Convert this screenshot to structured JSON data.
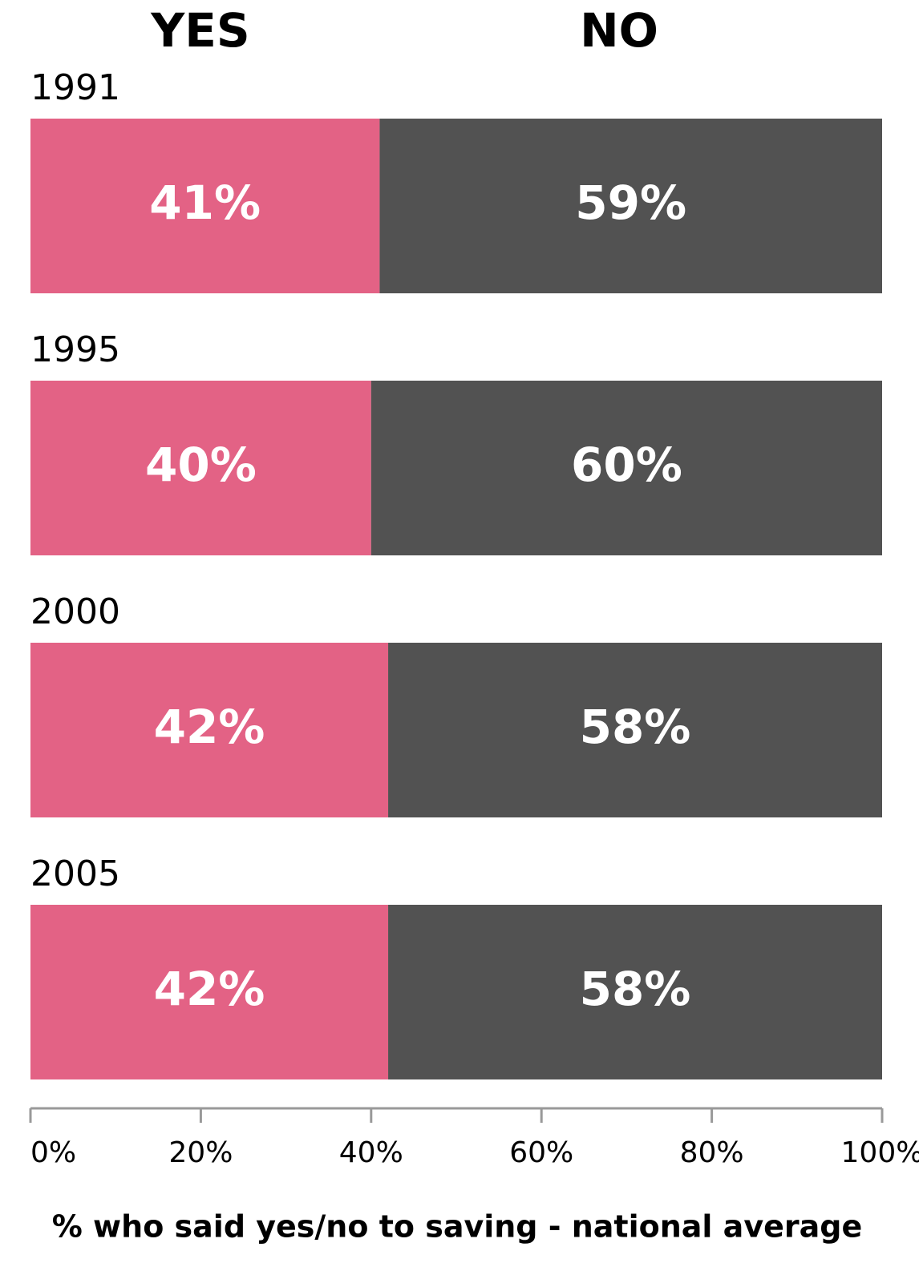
{
  "chart_data": {
    "type": "stacked-bar-horizontal",
    "categories": [
      "1991",
      "1995",
      "2000",
      "2005"
    ],
    "series": [
      {
        "name": "YES",
        "color": "#e36285",
        "values": [
          41,
          40,
          42,
          42
        ],
        "value_labels": [
          "41%",
          "40%",
          "42%",
          "42%"
        ]
      },
      {
        "name": "NO",
        "color": "#525252",
        "values": [
          59,
          60,
          58,
          58
        ],
        "value_labels": [
          "59%",
          "60%",
          "58%",
          "58%"
        ]
      }
    ],
    "xlim": [
      0,
      100
    ],
    "xticks": [
      {
        "value": 0,
        "label": "0%"
      },
      {
        "value": 20,
        "label": "20%"
      },
      {
        "value": 40,
        "label": "40%"
      },
      {
        "value": 60,
        "label": "60%"
      },
      {
        "value": 80,
        "label": "80%"
      },
      {
        "value": 100,
        "label": "100%"
      }
    ],
    "x_label": "% who said yes/no to saving - national average"
  }
}
